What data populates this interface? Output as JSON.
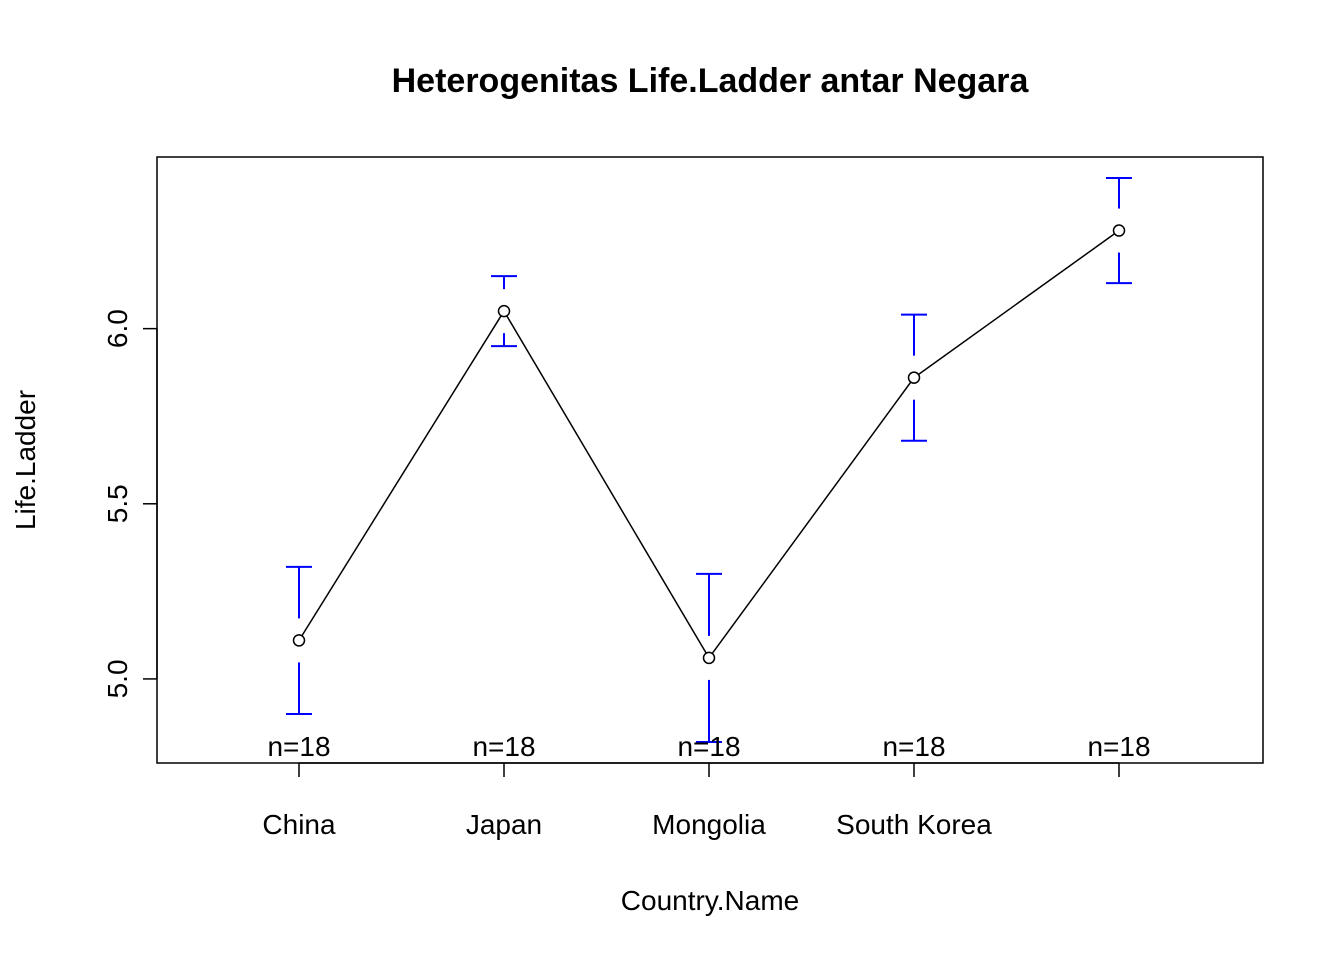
{
  "chart_data": {
    "type": "line",
    "title": "Heterogenitas Life.Ladder antar Negara",
    "xlabel": "Country.Name",
    "ylabel": "Life.Ladder",
    "ylim": [
      4.76,
      6.49
    ],
    "yticks": [
      "5.0",
      "5.5",
      "6.0"
    ],
    "categories": [
      "China",
      "Japan",
      "Mongolia",
      "South Korea",
      ""
    ],
    "series": [
      {
        "means": [
          5.11,
          6.05,
          5.06,
          5.86,
          6.28
        ],
        "lower": [
          4.9,
          5.95,
          4.82,
          5.68,
          6.13
        ],
        "upper": [
          5.32,
          6.15,
          5.3,
          6.04,
          6.43
        ],
        "n_labels": [
          "n=18",
          "n=18",
          "n=18",
          "n=18",
          "n=18"
        ]
      }
    ],
    "line_color": "#000000",
    "errorbar_color": "#0000ff",
    "grid": false,
    "legend": "none"
  }
}
